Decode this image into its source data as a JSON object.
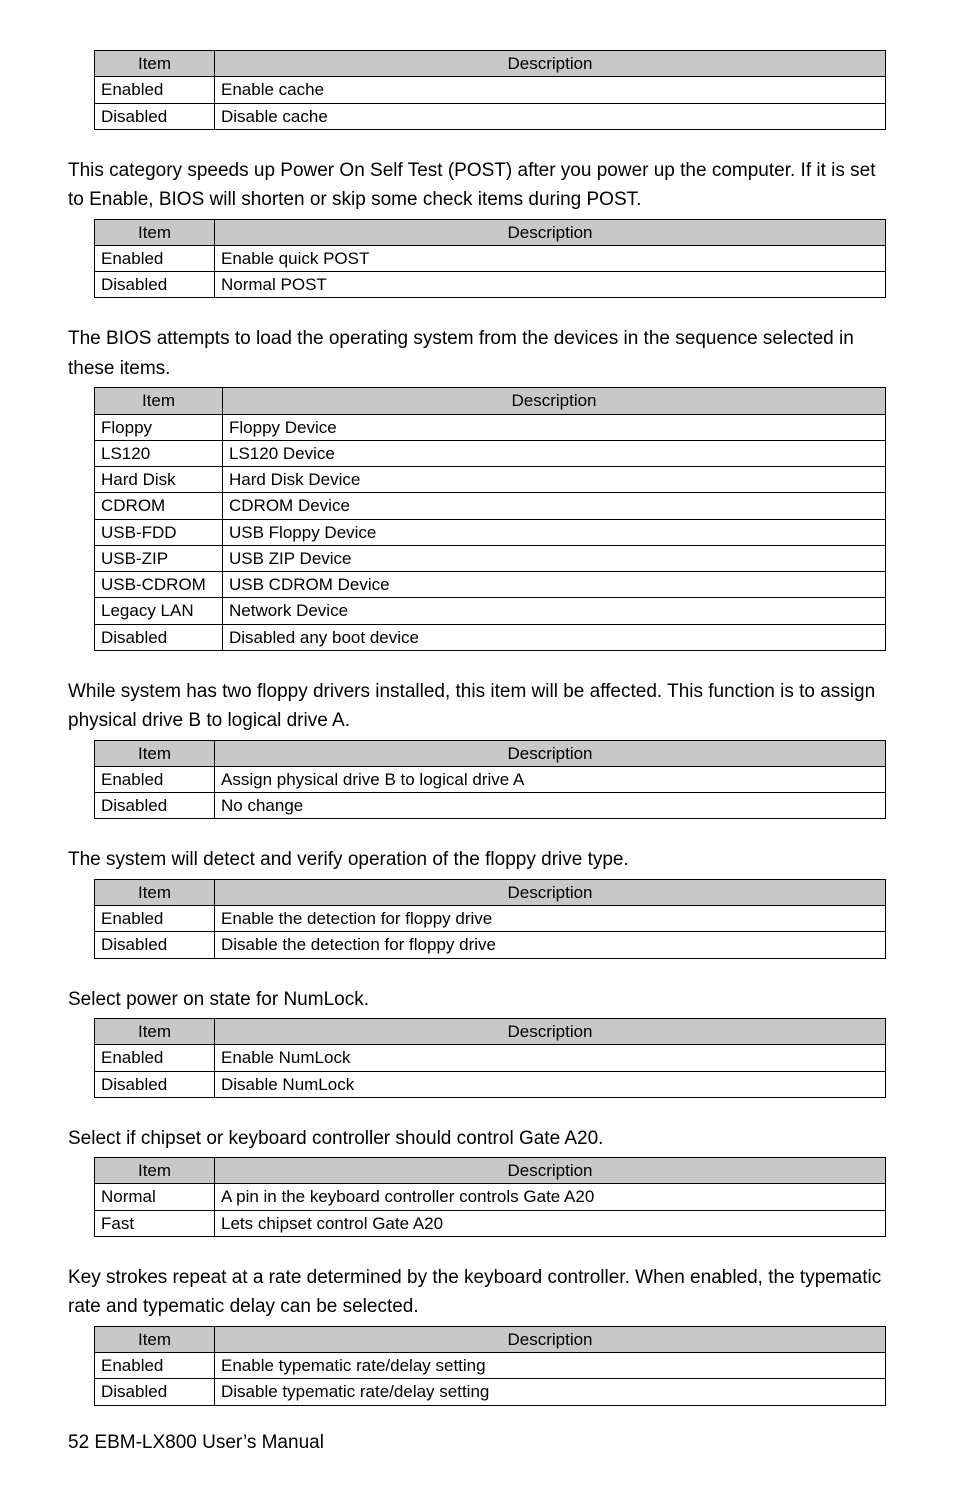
{
  "headers": {
    "item": "Item",
    "desc": "Description"
  },
  "sections": [
    {
      "intro": "",
      "colclass": "c1",
      "rows": [
        {
          "k": "Enabled",
          "v": "Enable cache"
        },
        {
          "k": "Disabled",
          "v": "Disable cache"
        }
      ]
    },
    {
      "intro": "This category speeds up Power On Self Test (POST) after you power up the computer. If it is set to Enable, BIOS will shorten or skip some check items during POST.",
      "colclass": "c1",
      "rows": [
        {
          "k": "Enabled",
          "v": "Enable quick POST"
        },
        {
          "k": "Disabled",
          "v": "Normal POST"
        }
      ]
    },
    {
      "intro": "The BIOS attempts to load the operating system from the devices in the sequence selected in these items.",
      "colclass": "c1w",
      "rows": [
        {
          "k": "Floppy",
          "v": "Floppy Device"
        },
        {
          "k": "LS120",
          "v": "LS120 Device"
        },
        {
          "k": "Hard Disk",
          "v": "Hard Disk Device"
        },
        {
          "k": "CDROM",
          "v": "CDROM Device"
        },
        {
          "k": "USB-FDD",
          "v": "USB Floppy Device"
        },
        {
          "k": "USB-ZIP",
          "v": "USB ZIP Device"
        },
        {
          "k": "USB-CDROM",
          "v": "USB CDROM Device"
        },
        {
          "k": "Legacy LAN",
          "v": "Network Device"
        },
        {
          "k": "Disabled",
          "v": "Disabled any boot device"
        }
      ]
    },
    {
      "intro": "While system has two floppy drivers installed, this item will be affected. This function is to assign physical drive B to logical drive A.",
      "colclass": "c1",
      "rows": [
        {
          "k": "Enabled",
          "v": "Assign physical drive B to logical drive A"
        },
        {
          "k": "Disabled",
          "v": "No change"
        }
      ]
    },
    {
      "intro": "The system will detect and verify operation of the floppy drive type.",
      "colclass": "c1",
      "rows": [
        {
          "k": "Enabled",
          "v": "Enable the detection for floppy drive"
        },
        {
          "k": "Disabled",
          "v": "Disable the detection for floppy drive"
        }
      ]
    },
    {
      "intro": "Select power on state for NumLock.",
      "colclass": "c1",
      "rows": [
        {
          "k": "Enabled",
          "v": "Enable NumLock"
        },
        {
          "k": "Disabled",
          "v": "Disable NumLock"
        }
      ]
    },
    {
      "intro": "Select if chipset or keyboard controller should control Gate A20.",
      "colclass": "c1",
      "rows": [
        {
          "k": "Normal",
          "v": "A pin in the keyboard controller controls Gate A20"
        },
        {
          "k": "Fast",
          "v": "Lets chipset control Gate A20"
        }
      ]
    },
    {
      "intro": "Key strokes repeat at a rate determined by the keyboard controller. When enabled, the typematic rate and typematic delay can be selected.",
      "colclass": "c1",
      "rows": [
        {
          "k": "Enabled",
          "v": "Enable typematic rate/delay setting"
        },
        {
          "k": "Disabled",
          "v": "Disable typematic rate/delay setting"
        }
      ]
    }
  ],
  "footer": "52 EBM-LX800 User’s Manual"
}
